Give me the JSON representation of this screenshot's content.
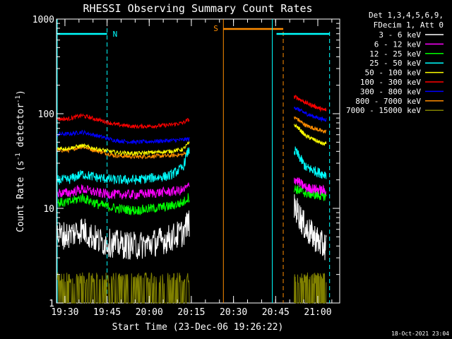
{
  "chart_data": {
    "type": "line",
    "title": "RHESSI Observing Summary Count Rates",
    "xlabel": "Start Time (23-Dec-06 19:26:22)",
    "ylabel_main": "Count Rate (s",
    "ylabel_sup1": "-1",
    "ylabel_mid": " detector",
    "ylabel_sup2": "-1",
    "ylabel_end": ")",
    "y_scale": "log",
    "ylim": [
      1,
      1000
    ],
    "x_range_minutes": [
      19.45,
      20.25
    ],
    "x_ticks": [
      {
        "t": 19.5,
        "label": "19:30"
      },
      {
        "t": 19.75,
        "label": "19:45"
      },
      {
        "t": 20.0,
        "label": "20:00"
      },
      {
        "t": 20.25,
        "label": "20:15"
      },
      {
        "t": 20.5,
        "label": "20:30"
      },
      {
        "t": 20.75,
        "label": "20:45"
      },
      {
        "t": 21.0,
        "label": "21:00"
      }
    ],
    "y_ticks": [
      {
        "v": 1,
        "label": "1"
      },
      {
        "v": 10,
        "label": "10"
      },
      {
        "v": 100,
        "label": "100"
      },
      {
        "v": 1000,
        "label": "1000"
      }
    ],
    "legend_header": [
      "Det 1,3,4,5,6,9,",
      "FDecim 1, Att 0"
    ],
    "series": [
      {
        "name": "3 - 6 keV",
        "color": "#ffffff",
        "values": [
          5.2,
          6.0,
          4.5,
          4.2,
          4.0,
          4.3,
          4.8,
          5.5,
          7.0
        ]
      },
      {
        "name": "6 - 12 keV",
        "color": "#ff00ff",
        "values": [
          14.5,
          16.0,
          14.5,
          14.0,
          14.0,
          14.5,
          15.0,
          15.5,
          17.0
        ]
      },
      {
        "name": "12 - 25 keV",
        "color": "#00ff00",
        "values": [
          11.5,
          13.0,
          11.0,
          10.0,
          9.5,
          10.0,
          10.5,
          11.5,
          13.0
        ]
      },
      {
        "name": "25 - 50 keV",
        "color": "#00ffff",
        "values": [
          20.0,
          23.0,
          21.0,
          20.0,
          20.0,
          21.0,
          22.0,
          27.0,
          40.0
        ]
      },
      {
        "name": "50 - 100 keV",
        "color": "#ffff00",
        "values": [
          43.0,
          46.0,
          42.0,
          39.0,
          38.0,
          39.0,
          40.0,
          42.0,
          48.0
        ]
      },
      {
        "name": "100 - 300 keV",
        "color": "#ff0000",
        "values": [
          88.0,
          96.0,
          86.0,
          77.0,
          73.0,
          74.0,
          76.0,
          80.0,
          86.0
        ]
      },
      {
        "name": "300 - 800 keV",
        "color": "#0000ff",
        "values": [
          61.0,
          64.0,
          58.0,
          52.0,
          50.0,
          51.0,
          52.0,
          53.0,
          54.0
        ]
      },
      {
        "name": "800 - 7000 keV",
        "color": "#ff8c00",
        "values": [
          41.0,
          45.0,
          40.0,
          36.0,
          35.0,
          35.5,
          36.0,
          37.0,
          40.0
        ]
      },
      {
        "name": "7000 - 15000 keV",
        "color": "#808000",
        "values": [
          1.5,
          2.1,
          1.5,
          1.5,
          1.5,
          1.5,
          1.6,
          1.6,
          1.6
        ]
      }
    ],
    "series_times": [
      19.52,
      19.6,
      19.7,
      19.8,
      19.92,
      20.02,
      20.12,
      20.2,
      20.23
    ],
    "after_segment_times": [
      20.87,
      20.93,
      20.98,
      21.03
    ],
    "after_segment_values": {
      "3 - 6 keV": [
        10.0,
        6.0,
        5.0,
        4.0
      ],
      "6 - 12 keV": [
        20.0,
        16.5,
        16.0,
        15.5
      ],
      "12 - 25 keV": [
        16.0,
        14.5,
        14.0,
        13.5
      ],
      "25 - 50 keV": [
        40.0,
        27.0,
        25.0,
        23.0
      ],
      "50 - 100 keV": [
        75.0,
        58.0,
        53.0,
        48.0
      ],
      "100 - 300 keV": [
        150.0,
        130.0,
        120.0,
        110.0
      ],
      "300 - 800 keV": [
        115.0,
        100.0,
        93.0,
        87.0
      ],
      "800 - 7000 keV": [
        90.0,
        75.0,
        70.0,
        65.0
      ],
      "7000 - 15000 keV": [
        2.0,
        1.8,
        1.6,
        1.6
      ]
    },
    "annotations": [
      {
        "label": "N",
        "color": "#00ffff"
      },
      {
        "label": "S",
        "color": "#ff8c00"
      }
    ],
    "timestamp": "18-Oct-2021 23:04"
  }
}
